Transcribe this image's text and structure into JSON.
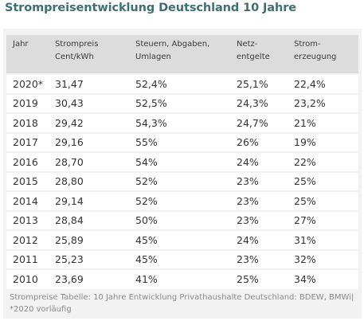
{
  "title": "Strompreisentwicklung Deutschland 10 Jahre",
  "table": {
    "headers": [
      {
        "line1": "Jahr",
        "line2": ""
      },
      {
        "line1": "Strompreis",
        "line2": "Cent/kWh"
      },
      {
        "line1": "Steuern, Abgaben,",
        "line2": "Umlagen"
      },
      {
        "line1": "Netz-",
        "line2": "entgelte"
      },
      {
        "line1": "Strom-",
        "line2": "erzeugung"
      }
    ],
    "rows": [
      [
        "2020*",
        "31,47",
        "52,4%",
        "25,1%",
        "22,4%"
      ],
      [
        "2019",
        "30,43",
        "52,5%",
        "24,3%",
        "23,2%"
      ],
      [
        "2018",
        "29,42",
        "54,3%",
        "24,7%",
        "21%"
      ],
      [
        "2017",
        "29,16",
        "55%",
        "26%",
        "19%"
      ],
      [
        "2016",
        "28,70",
        "54%",
        "24%",
        "22%"
      ],
      [
        "2015",
        "28,80",
        "52%",
        "23%",
        "25%"
      ],
      [
        "2014",
        "29,14",
        "52%",
        "23%",
        "25%"
      ],
      [
        "2013",
        "28,84",
        "50%",
        "23%",
        "27%"
      ],
      [
        "2012",
        "25,89",
        "45%",
        "24%",
        "31%"
      ],
      [
        "2011",
        "25,23",
        "45%",
        "23%",
        "32%"
      ],
      [
        "2010",
        "23,69",
        "41%",
        "25%",
        "34%"
      ]
    ]
  },
  "caption": "Strompreise Tabelle: 10 Jahre Entwicklung Privathaushalte Deutschland: BDEW, BMWi| *2020 vorläufig",
  "colors": {
    "title": "#3f6f73",
    "header_bg": "#dcdcdc",
    "panel_bg": "#f2f2f2",
    "row_bg": "#ffffff",
    "caption": "#8a8a8a"
  }
}
